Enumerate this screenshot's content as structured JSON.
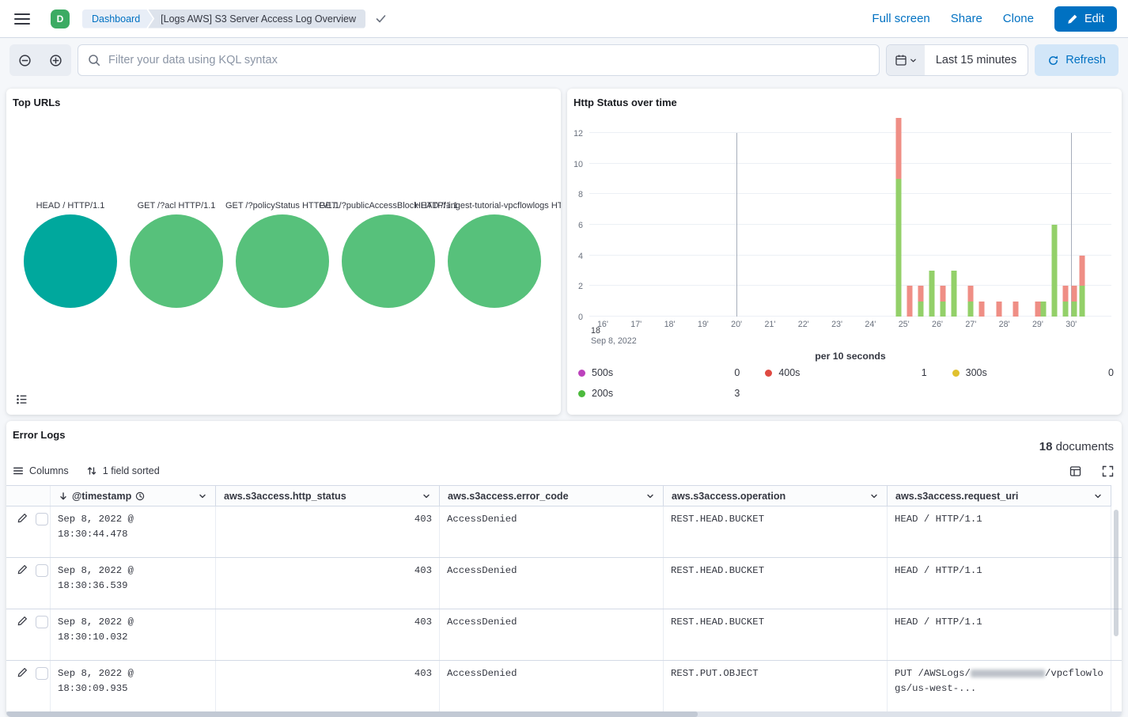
{
  "header": {
    "avatar_initial": "D",
    "breadcrumb_dashboard": "Dashboard",
    "breadcrumb_current": "[Logs AWS] S3 Server Access Log Overview",
    "action_fullscreen": "Full screen",
    "action_share": "Share",
    "action_clone": "Clone",
    "edit_button": "Edit"
  },
  "query_bar": {
    "search_placeholder": "Filter your data using KQL syntax",
    "time_range": "Last 15 minutes",
    "refresh_label": "Refresh"
  },
  "top_urls": {
    "title": "Top URLs",
    "bubbles": [
      {
        "label": "HEAD / HTTP/1.1",
        "color": "#00a89d"
      },
      {
        "label": "GET /?acl HTTP/1.1",
        "color": "#57c17b"
      },
      {
        "label": "GET /?policyStatus HTTP/1.1",
        "color": "#57c17b"
      },
      {
        "label": "GET /?publicAccessBlock HTTP/1.1",
        "color": "#57c17b"
      },
      {
        "label": "HEAD /f-ingest-tutorial-vpcflowlogs HTT...",
        "color": "#57c17b"
      }
    ]
  },
  "http_status": {
    "title": "Http Status over time",
    "chart_data": {
      "type": "bar",
      "stacked": true,
      "title": "Http Status over time",
      "xlabel": "per 10 seconds",
      "x_context_hour": "18",
      "x_context_date": "Sep 8, 2022",
      "x_ticks": [
        "16'",
        "17'",
        "18'",
        "19'",
        "20'",
        "21'",
        "22'",
        "23'",
        "24'",
        "25'",
        "26'",
        "27'",
        "28'",
        "29'",
        "30'"
      ],
      "emphasized_ticks": [
        "20'",
        "30'"
      ],
      "ylim": [
        0,
        12
      ],
      "y_ticks": [
        0,
        2,
        4,
        6,
        8,
        10,
        12
      ],
      "series": [
        {
          "name": "200s",
          "color": "#93d069"
        },
        {
          "name": "400s",
          "color": "#ef8e85"
        }
      ],
      "bars": [
        {
          "time": "18:24:50",
          "s200": 9,
          "s400": 4
        },
        {
          "time": "18:25:10",
          "s200": 0,
          "s400": 2
        },
        {
          "time": "18:25:30",
          "s200": 1,
          "s400": 1
        },
        {
          "time": "18:25:50",
          "s200": 3,
          "s400": 0
        },
        {
          "time": "18:26:10",
          "s200": 1,
          "s400": 1
        },
        {
          "time": "18:26:30",
          "s200": 3,
          "s400": 0
        },
        {
          "time": "18:27:00",
          "s200": 1,
          "s400": 1
        },
        {
          "time": "18:27:20",
          "s200": 0,
          "s400": 1
        },
        {
          "time": "18:27:50",
          "s200": 0,
          "s400": 1
        },
        {
          "time": "18:28:20",
          "s200": 0,
          "s400": 1
        },
        {
          "time": "18:29:00",
          "s200": 0,
          "s400": 1
        },
        {
          "time": "18:29:10",
          "s200": 1,
          "s400": 0
        },
        {
          "time": "18:29:30",
          "s200": 6,
          "s400": 0
        },
        {
          "time": "18:29:50",
          "s200": 1,
          "s400": 1
        },
        {
          "time": "18:30:05",
          "s200": 1,
          "s400": 1
        },
        {
          "time": "18:30:20",
          "s200": 2,
          "s400": 2
        }
      ],
      "legend": [
        {
          "label": "500s",
          "value": "0",
          "color": "#bc42bc"
        },
        {
          "label": "400s",
          "value": "1",
          "color": "#df4a42"
        },
        {
          "label": "300s",
          "value": "0",
          "color": "#e0c12f"
        },
        {
          "label": "200s",
          "value": "3",
          "color": "#4cba3d"
        }
      ],
      "legend_position": "bottom"
    }
  },
  "error_logs": {
    "title": "Error Logs",
    "doc_count": "18",
    "doc_count_label": "documents",
    "toolbar": {
      "columns_label": "Columns",
      "sort_label": "1 field sorted"
    },
    "columns": [
      {
        "id": "timestamp",
        "label": "@timestamp",
        "sorted": true,
        "time_field": true
      },
      {
        "id": "http-status",
        "label": "aws.s3access.http_status",
        "numeric": true
      },
      {
        "id": "error-code",
        "label": "aws.s3access.error_code"
      },
      {
        "id": "operation",
        "label": "aws.s3access.operation"
      },
      {
        "id": "request-uri",
        "label": "aws.s3access.request_uri"
      }
    ],
    "rows": [
      {
        "timestamp": "Sep 8, 2022 @ 18:30:44.478",
        "http_status": "403",
        "error_code": "AccessDenied",
        "operation": "REST.HEAD.BUCKET",
        "request_uri": "HEAD / HTTP/1.1"
      },
      {
        "timestamp": "Sep 8, 2022 @ 18:30:36.539",
        "http_status": "403",
        "error_code": "AccessDenied",
        "operation": "REST.HEAD.BUCKET",
        "request_uri": "HEAD / HTTP/1.1"
      },
      {
        "timestamp": "Sep 8, 2022 @ 18:30:10.032",
        "http_status": "403",
        "error_code": "AccessDenied",
        "operation": "REST.HEAD.BUCKET",
        "request_uri": "HEAD / HTTP/1.1"
      },
      {
        "timestamp": "Sep 8, 2022 @ 18:30:09.935",
        "http_status": "403",
        "error_code": "AccessDenied",
        "operation": "REST.PUT.OBJECT",
        "request_uri_parts": {
          "pre": "PUT /AWSLogs/",
          "redacted": true,
          "post": "/vpcflowlogs/us-west-..."
        }
      }
    ]
  }
}
